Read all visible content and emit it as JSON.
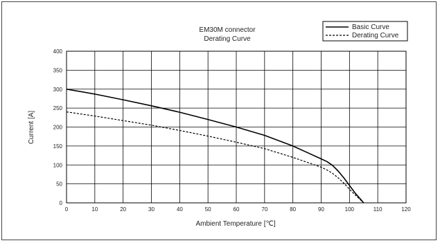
{
  "chart_data": {
    "type": "line",
    "title": [
      "EM30M connector",
      "Derating Curve"
    ],
    "xlabel": "Ambient Temperature [℃]",
    "ylabel": "Current [A]",
    "xlim": [
      0,
      120
    ],
    "ylim": [
      0,
      400
    ],
    "xticks": [
      0,
      10,
      20,
      30,
      40,
      50,
      60,
      70,
      80,
      90,
      100,
      110,
      120
    ],
    "yticks": [
      0,
      50,
      100,
      150,
      200,
      250,
      300,
      350,
      400
    ],
    "grid": true,
    "legend_position": "top-right",
    "series": [
      {
        "name": "Basic Curve",
        "style": "solid",
        "color": "#000000",
        "x": [
          0,
          10,
          20,
          30,
          40,
          50,
          60,
          70,
          80,
          85,
          90,
          92,
          94,
          96,
          98,
          100,
          102,
          104,
          105
        ],
        "y": [
          300,
          287,
          272,
          256,
          239,
          220,
          200,
          178,
          150,
          133,
          116,
          109,
          99,
          84,
          66,
          46,
          26,
          9,
          0
        ]
      },
      {
        "name": "Derating Curve",
        "style": "dashed",
        "color": "#000000",
        "x": [
          0,
          10,
          20,
          30,
          40,
          50,
          60,
          70,
          80,
          85,
          90,
          92,
          94,
          96,
          98,
          100,
          102,
          104,
          105
        ],
        "y": [
          240,
          229,
          217,
          205,
          191,
          176,
          160,
          143,
          120,
          107,
          94,
          87,
          78,
          66,
          52,
          36,
          21,
          7,
          0
        ]
      }
    ]
  }
}
